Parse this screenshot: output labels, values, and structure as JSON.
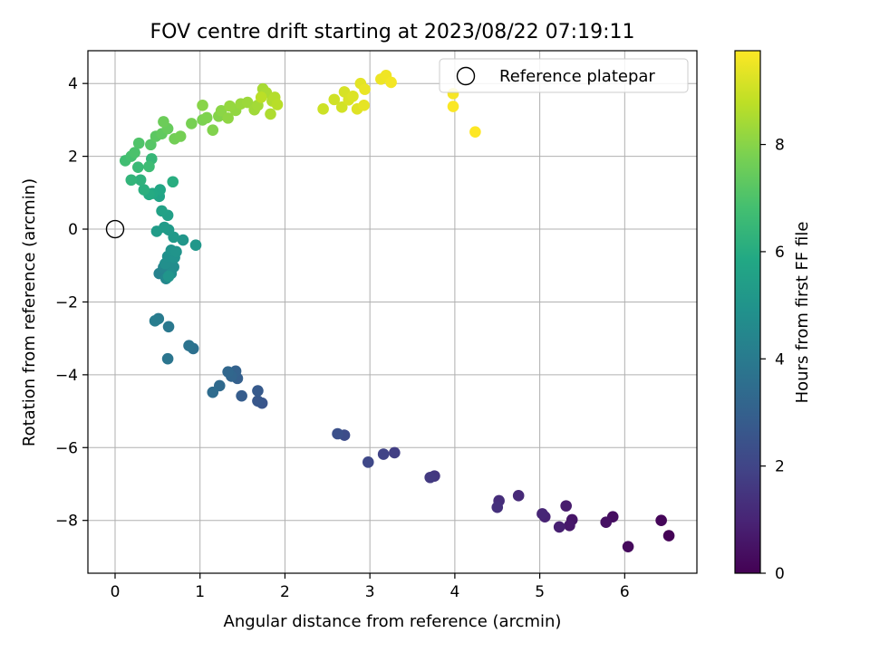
{
  "chart_data": {
    "type": "scatter",
    "title": "FOV centre drift starting at 2023/08/22 07:19:11",
    "xlabel": "Angular distance from reference (arcmin)",
    "ylabel": "Rotation from reference (arcmin)",
    "xlim": [
      -0.32,
      6.85
    ],
    "ylim": [
      -9.45,
      4.9
    ],
    "xticks": [
      0,
      1,
      2,
      3,
      4,
      5,
      6
    ],
    "yticks": [
      -8,
      -6,
      -4,
      -2,
      0,
      2,
      4
    ],
    "grid": true,
    "legend": {
      "placement": "top-right",
      "entries": [
        "Reference platepar"
      ]
    },
    "reference_point": {
      "x": 0,
      "y": 0
    },
    "colorbar": {
      "label": "Hours from first FF file",
      "colormap": "viridis",
      "range": [
        0,
        9.75
      ],
      "ticks": [
        0,
        2,
        4,
        6,
        8
      ]
    },
    "columns": [
      "x",
      "y",
      "hours"
    ],
    "points": [
      [
        6.52,
        -8.42,
        0.05
      ],
      [
        6.43,
        -8.0,
        0.15
      ],
      [
        6.04,
        -8.72,
        0.25
      ],
      [
        5.86,
        -7.9,
        0.35
      ],
      [
        5.78,
        -8.05,
        0.45
      ],
      [
        5.38,
        -7.98,
        0.55
      ],
      [
        5.35,
        -8.14,
        0.65
      ],
      [
        5.31,
        -7.6,
        0.75
      ],
      [
        5.23,
        -8.18,
        0.85
      ],
      [
        5.06,
        -7.9,
        0.95
      ],
      [
        5.03,
        -7.82,
        1.05
      ],
      [
        4.75,
        -7.32,
        1.15
      ],
      [
        4.52,
        -7.46,
        1.25
      ],
      [
        4.5,
        -7.64,
        1.35
      ],
      [
        3.76,
        -6.78,
        1.55
      ],
      [
        3.71,
        -6.82,
        1.65
      ],
      [
        3.29,
        -6.14,
        1.8
      ],
      [
        3.16,
        -6.18,
        1.95
      ],
      [
        2.98,
        -6.4,
        2.1
      ],
      [
        2.7,
        -5.66,
        2.25
      ],
      [
        2.62,
        -5.62,
        2.4
      ],
      [
        1.73,
        -4.78,
        2.55
      ],
      [
        1.68,
        -4.72,
        2.65
      ],
      [
        1.68,
        -4.44,
        2.75
      ],
      [
        1.49,
        -4.58,
        2.85
      ],
      [
        1.44,
        -4.1,
        2.95
      ],
      [
        1.42,
        -3.9,
        3.05
      ],
      [
        1.37,
        -4.04,
        3.15
      ],
      [
        1.33,
        -3.92,
        3.25
      ],
      [
        1.23,
        -4.3,
        3.35
      ],
      [
        1.15,
        -4.48,
        3.45
      ],
      [
        0.92,
        -3.28,
        3.6
      ],
      [
        0.87,
        -3.2,
        3.7
      ],
      [
        0.62,
        -3.56,
        3.8
      ],
      [
        0.63,
        -2.68,
        3.9
      ],
      [
        0.51,
        -2.46,
        4.0
      ],
      [
        0.47,
        -2.52,
        4.1
      ],
      [
        0.52,
        -1.22,
        4.3
      ],
      [
        0.57,
        -1.05,
        4.4
      ],
      [
        0.6,
        -1.36,
        4.5
      ],
      [
        0.63,
        -0.92,
        4.6
      ],
      [
        0.69,
        -1.04,
        4.7
      ],
      [
        0.66,
        -1.22,
        4.75
      ],
      [
        0.59,
        -0.95,
        4.8
      ],
      [
        0.62,
        -0.75,
        4.85
      ],
      [
        0.7,
        -0.78,
        4.9
      ],
      [
        0.66,
        -0.58,
        4.95
      ],
      [
        0.72,
        -0.62,
        5.0
      ],
      [
        0.63,
        -1.3,
        5.05
      ],
      [
        0.8,
        -0.3,
        5.1
      ],
      [
        0.95,
        -0.44,
        5.15
      ],
      [
        0.69,
        -0.22,
        5.2
      ],
      [
        0.63,
        -0.02,
        5.25
      ],
      [
        0.58,
        0.05,
        5.3
      ],
      [
        0.49,
        -0.06,
        5.35
      ],
      [
        0.62,
        0.38,
        5.45
      ],
      [
        0.55,
        0.5,
        5.55
      ],
      [
        0.52,
        0.9,
        5.65
      ],
      [
        0.53,
        1.08,
        5.75
      ],
      [
        0.44,
        0.98,
        5.85
      ],
      [
        0.4,
        0.95,
        5.95
      ],
      [
        0.68,
        1.3,
        6.05
      ],
      [
        0.34,
        1.08,
        6.15
      ],
      [
        0.3,
        1.35,
        6.25
      ],
      [
        0.19,
        1.35,
        6.35
      ],
      [
        0.43,
        1.93,
        6.45
      ],
      [
        0.27,
        1.7,
        6.55
      ],
      [
        0.4,
        1.72,
        6.65
      ],
      [
        0.12,
        1.88,
        6.75
      ],
      [
        0.19,
        2.0,
        6.85
      ],
      [
        0.23,
        2.1,
        6.95
      ],
      [
        0.28,
        2.36,
        7.05
      ],
      [
        0.42,
        2.32,
        7.15
      ],
      [
        0.48,
        2.55,
        7.25
      ],
      [
        0.55,
        2.62,
        7.35
      ],
      [
        0.62,
        2.76,
        7.45
      ],
      [
        0.57,
        2.95,
        7.55
      ],
      [
        0.7,
        2.48,
        7.65
      ],
      [
        0.77,
        2.55,
        7.7
      ],
      [
        0.9,
        2.9,
        7.75
      ],
      [
        1.03,
        3.0,
        7.8
      ],
      [
        1.08,
        3.06,
        7.85
      ],
      [
        1.15,
        2.72,
        7.9
      ],
      [
        1.22,
        3.1,
        7.95
      ],
      [
        1.03,
        3.4,
        8.0
      ],
      [
        1.25,
        3.25,
        8.05
      ],
      [
        1.33,
        3.05,
        8.1
      ],
      [
        1.42,
        3.26,
        8.15
      ],
      [
        1.35,
        3.38,
        8.2
      ],
      [
        1.48,
        3.44,
        8.25
      ],
      [
        1.56,
        3.48,
        8.3
      ],
      [
        1.64,
        3.28,
        8.35
      ],
      [
        1.68,
        3.4,
        8.4
      ],
      [
        1.74,
        3.85,
        8.45
      ],
      [
        1.78,
        3.75,
        8.5
      ],
      [
        1.83,
        3.16,
        8.55
      ],
      [
        1.85,
        3.52,
        8.6
      ],
      [
        1.88,
        3.62,
        8.65
      ],
      [
        1.91,
        3.42,
        8.7
      ],
      [
        1.72,
        3.62,
        8.75
      ],
      [
        2.45,
        3.3,
        9.0
      ],
      [
        2.58,
        3.56,
        9.05
      ],
      [
        2.67,
        3.35,
        9.1
      ],
      [
        2.7,
        3.77,
        9.15
      ],
      [
        2.75,
        3.55,
        9.2
      ],
      [
        2.8,
        3.65,
        9.25
      ],
      [
        2.85,
        3.3,
        9.3
      ],
      [
        2.89,
        4.0,
        9.35
      ],
      [
        2.93,
        3.4,
        9.4
      ],
      [
        2.94,
        3.84,
        9.45
      ],
      [
        3.13,
        4.12,
        9.5
      ],
      [
        3.19,
        4.22,
        9.55
      ],
      [
        3.25,
        4.03,
        9.6
      ],
      [
        3.98,
        3.72,
        9.65
      ],
      [
        3.98,
        3.37,
        9.7
      ],
      [
        4.24,
        2.67,
        9.75
      ]
    ]
  }
}
